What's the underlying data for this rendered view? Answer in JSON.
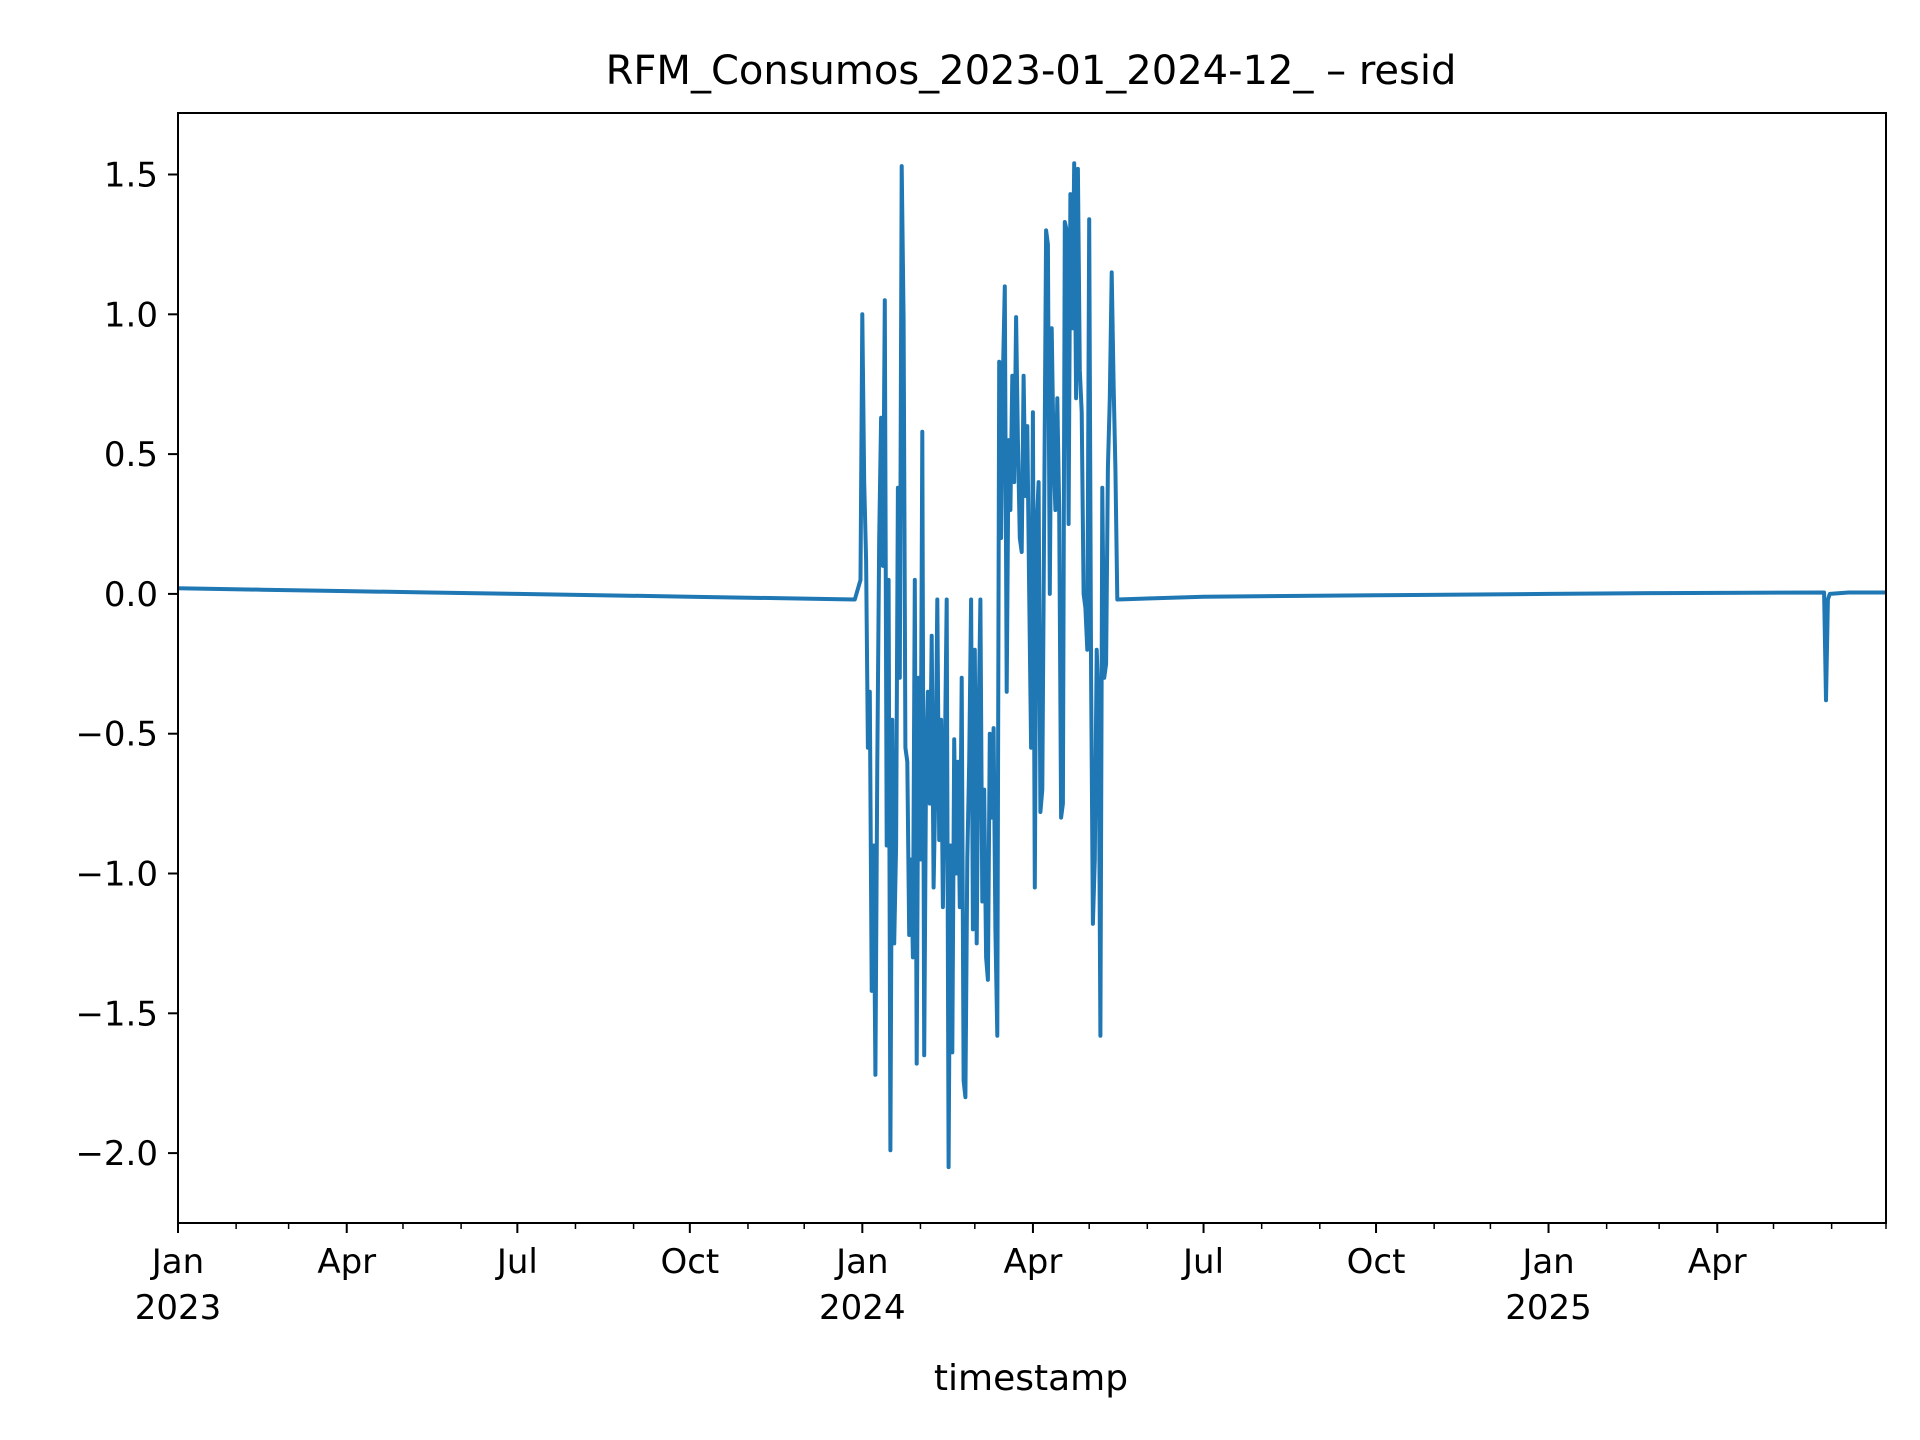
{
  "chart_data": {
    "type": "line",
    "title": "RFM_Consumos_2023-01_2024-12_ – resid",
    "xlabel": "timestamp",
    "ylabel": "",
    "xlim": [
      "2023-01-01",
      "2025-06-30"
    ],
    "ylim": [
      -2.25,
      1.72
    ],
    "y_ticks": [
      {
        "value": 1.5,
        "label": "1.5"
      },
      {
        "value": 1.0,
        "label": "1.0"
      },
      {
        "value": 0.5,
        "label": "0.5"
      },
      {
        "value": 0.0,
        "label": "0.0"
      },
      {
        "value": -0.5,
        "label": "−0.5"
      },
      {
        "value": -1.0,
        "label": "−1.0"
      },
      {
        "value": -1.5,
        "label": "−1.5"
      },
      {
        "value": -2.0,
        "label": "−2.0"
      }
    ],
    "x_ticks": [
      {
        "date": "2023-01-01",
        "label": "Jan",
        "label2": "2023"
      },
      {
        "date": "2023-04-01",
        "label": "Apr",
        "label2": ""
      },
      {
        "date": "2023-07-01",
        "label": "Jul",
        "label2": ""
      },
      {
        "date": "2023-10-01",
        "label": "Oct",
        "label2": ""
      },
      {
        "date": "2024-01-01",
        "label": "Jan",
        "label2": "2024"
      },
      {
        "date": "2024-04-01",
        "label": "Apr",
        "label2": ""
      },
      {
        "date": "2024-07-01",
        "label": "Jul",
        "label2": ""
      },
      {
        "date": "2024-10-01",
        "label": "Oct",
        "label2": ""
      },
      {
        "date": "2025-01-01",
        "label": "Jan",
        "label2": "2025"
      },
      {
        "date": "2025-04-01",
        "label": "Apr",
        "label2": ""
      }
    ],
    "x_minor_ticks": [
      "2023-02-01",
      "2023-03-01",
      "2023-05-01",
      "2023-06-01",
      "2023-08-01",
      "2023-09-01",
      "2023-11-01",
      "2023-12-01",
      "2024-02-01",
      "2024-03-01",
      "2024-05-01",
      "2024-06-01",
      "2024-08-01",
      "2024-09-01",
      "2024-11-01",
      "2024-12-01",
      "2025-02-01",
      "2025-03-01",
      "2025-05-01",
      "2025-06-01",
      "2025-06-30"
    ],
    "series": [
      {
        "name": "",
        "color": "#1f77b4",
        "points": [
          [
            "2023-01-01",
            0.02
          ],
          [
            "2023-02-15",
            0.015
          ],
          [
            "2023-04-01",
            0.01
          ],
          [
            "2023-05-15",
            0.005
          ],
          [
            "2023-07-01",
            0.0
          ],
          [
            "2023-10-01",
            -0.01
          ],
          [
            "2023-12-28",
            -0.02
          ],
          [
            "2023-12-31",
            0.05
          ],
          [
            "2024-01-01",
            1.0
          ],
          [
            "2024-01-02",
            0.4
          ],
          [
            "2024-01-03",
            0.12
          ],
          [
            "2024-01-04",
            -0.55
          ],
          [
            "2024-01-05",
            -0.35
          ],
          [
            "2024-01-06",
            -1.42
          ],
          [
            "2024-01-07",
            -0.9
          ],
          [
            "2024-01-08",
            -1.72
          ],
          [
            "2024-01-09",
            -0.6
          ],
          [
            "2024-01-10",
            0.2
          ],
          [
            "2024-01-11",
            0.63
          ],
          [
            "2024-01-12",
            0.1
          ],
          [
            "2024-01-13",
            1.05
          ],
          [
            "2024-01-14",
            -0.9
          ],
          [
            "2024-01-15",
            0.05
          ],
          [
            "2024-01-16",
            -1.99
          ],
          [
            "2024-01-17",
            -0.45
          ],
          [
            "2024-01-18",
            -1.25
          ],
          [
            "2024-01-19",
            -0.9
          ],
          [
            "2024-01-20",
            0.38
          ],
          [
            "2024-01-21",
            -0.3
          ],
          [
            "2024-01-22",
            1.53
          ],
          [
            "2024-01-23",
            0.98
          ],
          [
            "2024-01-24",
            -0.55
          ],
          [
            "2024-01-25",
            -0.6
          ],
          [
            "2024-01-26",
            -1.22
          ],
          [
            "2024-01-27",
            -0.95
          ],
          [
            "2024-01-28",
            -1.3
          ],
          [
            "2024-01-29",
            0.05
          ],
          [
            "2024-01-30",
            -1.68
          ],
          [
            "2024-01-31",
            -0.3
          ],
          [
            "2024-02-01",
            -0.95
          ],
          [
            "2024-02-02",
            0.58
          ],
          [
            "2024-02-03",
            -1.65
          ],
          [
            "2024-02-04",
            -0.6
          ],
          [
            "2024-02-05",
            -0.35
          ],
          [
            "2024-02-06",
            -0.75
          ],
          [
            "2024-02-07",
            -0.15
          ],
          [
            "2024-02-08",
            -1.05
          ],
          [
            "2024-02-09",
            -0.68
          ],
          [
            "2024-02-10",
            -0.02
          ],
          [
            "2024-02-11",
            -0.88
          ],
          [
            "2024-02-12",
            -0.45
          ],
          [
            "2024-02-13",
            -1.12
          ],
          [
            "2024-02-14",
            -0.6
          ],
          [
            "2024-02-15",
            -0.02
          ],
          [
            "2024-02-16",
            -2.05
          ],
          [
            "2024-02-17",
            -0.9
          ],
          [
            "2024-02-18",
            -1.64
          ],
          [
            "2024-02-19",
            -0.52
          ],
          [
            "2024-02-20",
            -1.0
          ],
          [
            "2024-02-21",
            -0.6
          ],
          [
            "2024-02-22",
            -1.12
          ],
          [
            "2024-02-23",
            -0.3
          ],
          [
            "2024-02-24",
            -1.74
          ],
          [
            "2024-02-25",
            -1.8
          ],
          [
            "2024-02-26",
            -0.95
          ],
          [
            "2024-02-27",
            -0.6
          ],
          [
            "2024-02-28",
            -0.02
          ],
          [
            "2024-02-29",
            -1.2
          ],
          [
            "2024-03-01",
            -0.2
          ],
          [
            "2024-03-02",
            -1.25
          ],
          [
            "2024-03-03",
            -0.45
          ],
          [
            "2024-03-04",
            -0.02
          ],
          [
            "2024-03-05",
            -1.1
          ],
          [
            "2024-03-06",
            -0.7
          ],
          [
            "2024-03-07",
            -1.3
          ],
          [
            "2024-03-08",
            -1.38
          ],
          [
            "2024-03-09",
            -0.5
          ],
          [
            "2024-03-10",
            -0.8
          ],
          [
            "2024-03-11",
            -0.48
          ],
          [
            "2024-03-12",
            -1.2
          ],
          [
            "2024-03-13",
            -1.58
          ],
          [
            "2024-03-14",
            0.83
          ],
          [
            "2024-03-15",
            0.2
          ],
          [
            "2024-03-16",
            0.78
          ],
          [
            "2024-03-17",
            1.1
          ],
          [
            "2024-03-18",
            -0.35
          ],
          [
            "2024-03-19",
            0.55
          ],
          [
            "2024-03-20",
            0.3
          ],
          [
            "2024-03-21",
            0.78
          ],
          [
            "2024-03-22",
            0.4
          ],
          [
            "2024-03-23",
            0.99
          ],
          [
            "2024-03-24",
            0.55
          ],
          [
            "2024-03-25",
            0.2
          ],
          [
            "2024-03-26",
            0.15
          ],
          [
            "2024-03-27",
            0.78
          ],
          [
            "2024-03-28",
            0.35
          ],
          [
            "2024-03-29",
            0.6
          ],
          [
            "2024-03-30",
            0.0
          ],
          [
            "2024-03-31",
            -0.55
          ],
          [
            "2024-04-01",
            0.65
          ],
          [
            "2024-04-02",
            -1.05
          ],
          [
            "2024-04-03",
            0.25
          ],
          [
            "2024-04-04",
            0.4
          ],
          [
            "2024-04-05",
            -0.78
          ],
          [
            "2024-04-06",
            -0.7
          ],
          [
            "2024-04-07",
            0.3
          ],
          [
            "2024-04-08",
            1.3
          ],
          [
            "2024-04-09",
            1.25
          ],
          [
            "2024-04-10",
            0.0
          ],
          [
            "2024-04-11",
            0.95
          ],
          [
            "2024-04-12",
            0.5
          ],
          [
            "2024-04-13",
            0.3
          ],
          [
            "2024-04-14",
            0.7
          ],
          [
            "2024-04-15",
            0.3
          ],
          [
            "2024-04-16",
            -0.8
          ],
          [
            "2024-04-17",
            -0.75
          ],
          [
            "2024-04-18",
            1.33
          ],
          [
            "2024-04-19",
            1.3
          ],
          [
            "2024-04-20",
            0.25
          ],
          [
            "2024-04-21",
            1.43
          ],
          [
            "2024-04-22",
            0.95
          ],
          [
            "2024-04-23",
            1.54
          ],
          [
            "2024-04-24",
            0.7
          ],
          [
            "2024-04-25",
            1.52
          ],
          [
            "2024-04-26",
            0.8
          ],
          [
            "2024-04-27",
            0.65
          ],
          [
            "2024-04-28",
            0.0
          ],
          [
            "2024-04-29",
            -0.05
          ],
          [
            "2024-04-30",
            -0.2
          ],
          [
            "2024-05-01",
            1.34
          ],
          [
            "2024-05-02",
            -0.3
          ],
          [
            "2024-05-03",
            -1.18
          ],
          [
            "2024-05-04",
            -0.95
          ],
          [
            "2024-05-05",
            -0.2
          ],
          [
            "2024-05-06",
            -0.4
          ],
          [
            "2024-05-07",
            -1.58
          ],
          [
            "2024-05-08",
            0.38
          ],
          [
            "2024-05-09",
            -0.3
          ],
          [
            "2024-05-10",
            -0.25
          ],
          [
            "2024-05-11",
            0.45
          ],
          [
            "2024-05-12",
            0.7
          ],
          [
            "2024-05-13",
            1.15
          ],
          [
            "2024-05-14",
            0.75
          ],
          [
            "2024-05-15",
            0.45
          ],
          [
            "2024-05-16",
            -0.02
          ],
          [
            "2024-07-01",
            -0.01
          ],
          [
            "2024-10-01",
            -0.005
          ],
          [
            "2025-01-01",
            0.0
          ],
          [
            "2025-03-01",
            0.003
          ],
          [
            "2025-05-28",
            0.005
          ],
          [
            "2025-05-29",
            -0.38
          ],
          [
            "2025-05-30",
            -0.02
          ],
          [
            "2025-05-31",
            0.0
          ],
          [
            "2025-06-10",
            0.005
          ],
          [
            "2025-06-30",
            0.005
          ]
        ]
      }
    ]
  }
}
